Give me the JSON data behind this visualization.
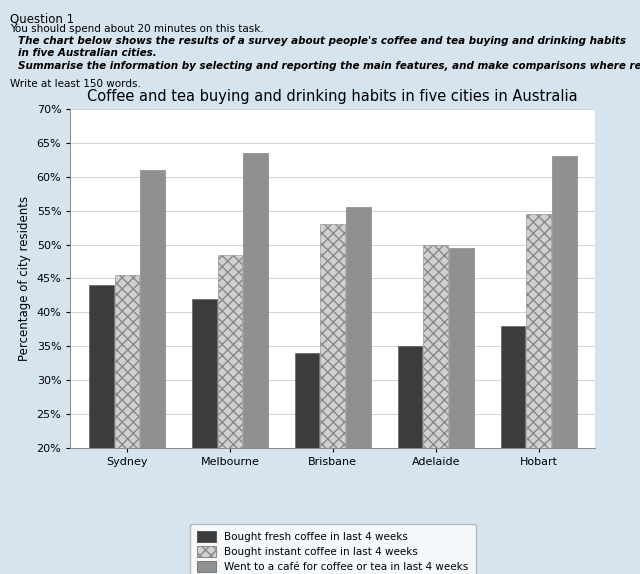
{
  "title": "Coffee and tea buying and drinking habits in five cities in Australia",
  "ylabel": "Percentage of city residents",
  "cities": [
    "Sydney",
    "Melbourne",
    "Brisbane",
    "Adelaide",
    "Hobart"
  ],
  "fresh_coffee": [
    44,
    42,
    34,
    35,
    38
  ],
  "instant_coffee": [
    45.5,
    48.5,
    53,
    50,
    54.5
  ],
  "cafe": [
    61,
    63.5,
    55.5,
    49.5,
    63
  ],
  "ylim": [
    20,
    70
  ],
  "yticks": [
    20,
    25,
    30,
    35,
    40,
    45,
    50,
    55,
    60,
    65,
    70
  ],
  "ytick_labels": [
    "20%",
    "25%",
    "30%",
    "35%",
    "40%",
    "45%",
    "50%",
    "55%",
    "60%",
    "65%",
    "70%"
  ],
  "color_fresh": "#3c3c3c",
  "color_instant": "#d0d0d0",
  "color_cafe": "#909090",
  "legend_labels": [
    "Bought fresh coffee in last 4 weeks",
    "Bought instant coffee in last 4 weeks",
    "Went to a café for coffee or tea in last 4 weeks"
  ],
  "bg_color": "#d6e4ef",
  "chart_bg": "#ffffff",
  "box_bg": "#dce8f2",
  "title_fontsize": 10.5,
  "axis_fontsize": 8.5,
  "tick_fontsize": 8
}
